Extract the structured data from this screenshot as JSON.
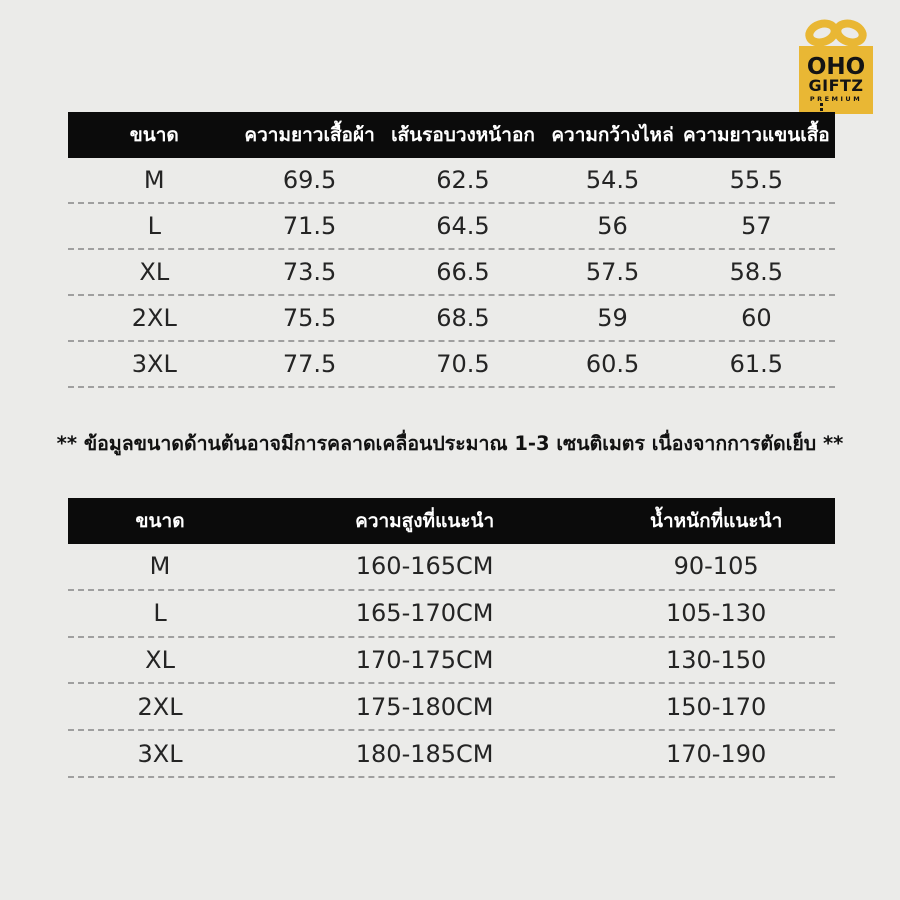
{
  "page": {
    "background_color": "#ebebe9",
    "header_bar_color": "#0b0b0b",
    "accent_gold": "#e9b734"
  },
  "logo": {
    "name": "OHO",
    "sub": "GIFTZ",
    "tagline": "PREMIUM"
  },
  "size_table": {
    "headers": [
      "ขนาด",
      "ความยาวเสื้อผ้า",
      "เส้นรอบวงหน้าอก",
      "ความกว้างไหล่",
      "ความยาวแขนเสื้อ"
    ],
    "rows": [
      [
        "M",
        "69.5",
        "62.5",
        "54.5",
        "55.5"
      ],
      [
        "L",
        "71.5",
        "64.5",
        "56",
        "57"
      ],
      [
        "XL",
        "73.5",
        "66.5",
        "57.5",
        "58.5"
      ],
      [
        "2XL",
        "75.5",
        "68.5",
        "59",
        "60"
      ],
      [
        "3XL",
        "77.5",
        "70.5",
        "60.5",
        "61.5"
      ]
    ]
  },
  "note": "** ข้อมูลขนาดด้านต้นอาจมีการคลาดเคลื่อนประมาณ 1-3 เซนติเมตร เนื่องจากการตัดเย็บ **",
  "fit_table": {
    "headers": [
      "ขนาด",
      "ความสูงที่แนะนำ",
      "น้ำหนักที่แนะนำ"
    ],
    "rows": [
      [
        "M",
        "160-165CM",
        "90-105"
      ],
      [
        "L",
        "165-170CM",
        "105-130"
      ],
      [
        "XL",
        "170-175CM",
        "130-150"
      ],
      [
        "2XL",
        "175-180CM",
        "150-170"
      ],
      [
        "3XL",
        "180-185CM",
        "170-190"
      ]
    ]
  }
}
